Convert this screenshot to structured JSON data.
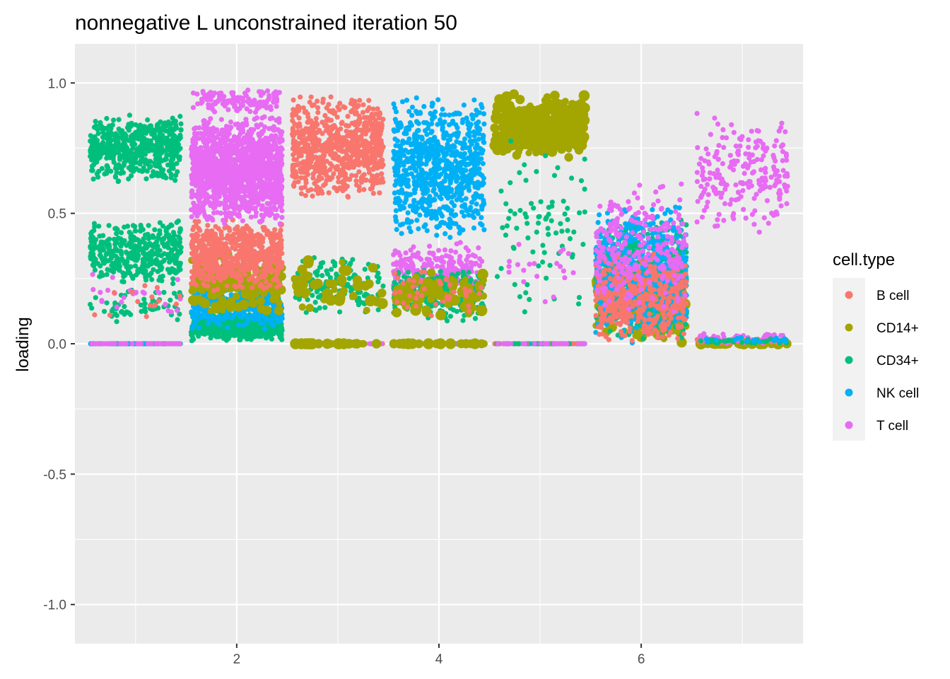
{
  "chart_data": {
    "type": "scatter",
    "title": "nonnegative L unconstrained iteration 50",
    "xlabel": "",
    "ylabel": "loading",
    "xlim": [
      0.4,
      7.6
    ],
    "ylim": [
      -1.15,
      1.15
    ],
    "x_ticks": [
      2,
      4,
      6
    ],
    "x_tick_labels": [
      "2",
      "4",
      "6"
    ],
    "y_ticks": [
      -1.0,
      -0.5,
      0.0,
      0.5,
      1.0
    ],
    "y_tick_labels": [
      "-1.0",
      "-0.5",
      "0.0",
      "0.5",
      "1.0"
    ],
    "grid": true,
    "legend": {
      "title": "cell.type",
      "position": "right",
      "entries": [
        "B cell",
        "CD14+",
        "CD34+",
        "NK cell",
        "T cell"
      ]
    },
    "colors": {
      "B cell": "#F8766D",
      "CD14+": "#A3A500",
      "CD34+": "#00BF7D",
      "NK cell": "#00B0F6",
      "T cell": "#E76BF3",
      "panel_bg": "#EBEBEB",
      "grid": "#FFFFFF"
    },
    "jitter_width": 0.45,
    "factors": [
      {
        "factor": 1,
        "groups": [
          {
            "type": "CD34+",
            "n": 520,
            "y": [
              0.62,
              0.88
            ]
          },
          {
            "type": "CD34+",
            "n": 380,
            "y": [
              0.22,
              0.48
            ]
          },
          {
            "type": "CD34+",
            "n": 60,
            "y": [
              0.08,
              0.22
            ]
          },
          {
            "type": "T cell",
            "n": 25,
            "y": [
              0.08,
              0.3
            ]
          },
          {
            "type": "B cell",
            "n": 15,
            "y": [
              0.1,
              0.25
            ]
          },
          {
            "type": "CD34+",
            "n": 50,
            "y": [
              0.0,
              0.0
            ]
          },
          {
            "type": "B cell",
            "n": 45,
            "y": [
              0.0,
              0.0
            ]
          },
          {
            "type": "NK cell",
            "n": 40,
            "y": [
              0.0,
              0.0
            ]
          },
          {
            "type": "T cell",
            "n": 45,
            "y": [
              0.0,
              0.0
            ]
          }
        ]
      },
      {
        "factor": 2,
        "groups": [
          {
            "type": "CD34+",
            "n": 650,
            "y": [
              0.01,
              0.12
            ]
          },
          {
            "type": "NK cell",
            "n": 450,
            "y": [
              0.05,
              0.25
            ]
          },
          {
            "type": "CD14+",
            "n": 140,
            "y": [
              0.1,
              0.35
            ]
          },
          {
            "type": "B cell",
            "n": 650,
            "y": [
              0.2,
              0.48
            ]
          },
          {
            "type": "T cell",
            "n": 1400,
            "y": [
              0.45,
              0.88
            ]
          },
          {
            "type": "T cell",
            "n": 120,
            "y": [
              0.88,
              0.98
            ]
          }
        ]
      },
      {
        "factor": 3,
        "groups": [
          {
            "type": "B cell",
            "n": 750,
            "y": [
              0.55,
              0.95
            ]
          },
          {
            "type": "CD34+",
            "n": 140,
            "y": [
              0.1,
              0.35
            ]
          },
          {
            "type": "CD14+",
            "n": 45,
            "y": [
              0.12,
              0.34
            ]
          },
          {
            "type": "B cell",
            "n": 40,
            "y": [
              0.0,
              0.0
            ]
          },
          {
            "type": "NK cell",
            "n": 40,
            "y": [
              0.0,
              0.0
            ]
          },
          {
            "type": "T cell",
            "n": 40,
            "y": [
              0.0,
              0.0
            ]
          },
          {
            "type": "CD14+",
            "n": 30,
            "y": [
              0.0,
              0.0
            ]
          }
        ]
      },
      {
        "factor": 4,
        "groups": [
          {
            "type": "NK cell",
            "n": 800,
            "y": [
              0.4,
              0.95
            ]
          },
          {
            "type": "T cell",
            "n": 250,
            "y": [
              0.15,
              0.4
            ]
          },
          {
            "type": "CD34+",
            "n": 250,
            "y": [
              0.08,
              0.3
            ]
          },
          {
            "type": "CD14+",
            "n": 70,
            "y": [
              0.1,
              0.28
            ]
          },
          {
            "type": "B cell",
            "n": 40,
            "y": [
              0.1,
              0.3
            ]
          },
          {
            "type": "B cell",
            "n": 40,
            "y": [
              0.0,
              0.0
            ]
          },
          {
            "type": "CD34+",
            "n": 40,
            "y": [
              0.0,
              0.0
            ]
          },
          {
            "type": "T cell",
            "n": 30,
            "y": [
              0.0,
              0.0
            ]
          },
          {
            "type": "CD14+",
            "n": 30,
            "y": [
              0.0,
              0.0
            ]
          }
        ]
      },
      {
        "factor": 5,
        "groups": [
          {
            "type": "CD14+",
            "n": 330,
            "y": [
              0.7,
              0.96
            ]
          },
          {
            "type": "CD34+",
            "n": 80,
            "y": [
              0.1,
              0.8
            ]
          },
          {
            "type": "T cell",
            "n": 20,
            "y": [
              0.15,
              0.4
            ]
          },
          {
            "type": "NK cell",
            "n": 60,
            "y": [
              0.0,
              0.0
            ]
          },
          {
            "type": "B cell",
            "n": 25,
            "y": [
              0.0,
              0.0
            ]
          },
          {
            "type": "CD34+",
            "n": 25,
            "y": [
              0.0,
              0.0
            ]
          },
          {
            "type": "T cell",
            "n": 25,
            "y": [
              0.0,
              0.0
            ]
          }
        ]
      },
      {
        "factor": 6,
        "groups": [
          {
            "type": "CD14+",
            "n": 200,
            "y": [
              0.0,
              0.3
            ]
          },
          {
            "type": "CD34+",
            "n": 650,
            "y": [
              0.0,
              0.5
            ]
          },
          {
            "type": "NK cell",
            "n": 550,
            "y": [
              0.0,
              0.55
            ]
          },
          {
            "type": "B cell",
            "n": 450,
            "y": [
              0.0,
              0.35
            ]
          },
          {
            "type": "T cell",
            "n": 250,
            "y": [
              0.1,
              0.62
            ]
          }
        ]
      },
      {
        "factor": 7,
        "groups": [
          {
            "type": "T cell",
            "n": 220,
            "y": [
              0.4,
              0.9
            ]
          },
          {
            "type": "CD14+",
            "n": 50,
            "y": [
              0.0,
              0.0
            ]
          },
          {
            "type": "B cell",
            "n": 50,
            "y": [
              0.0,
              0.02
            ]
          },
          {
            "type": "T cell",
            "n": 60,
            "y": [
              0.0,
              0.04
            ]
          },
          {
            "type": "CD34+",
            "n": 40,
            "y": [
              0.0,
              0.02
            ]
          },
          {
            "type": "NK cell",
            "n": 20,
            "y": [
              0.0,
              0.03
            ]
          }
        ]
      }
    ]
  }
}
